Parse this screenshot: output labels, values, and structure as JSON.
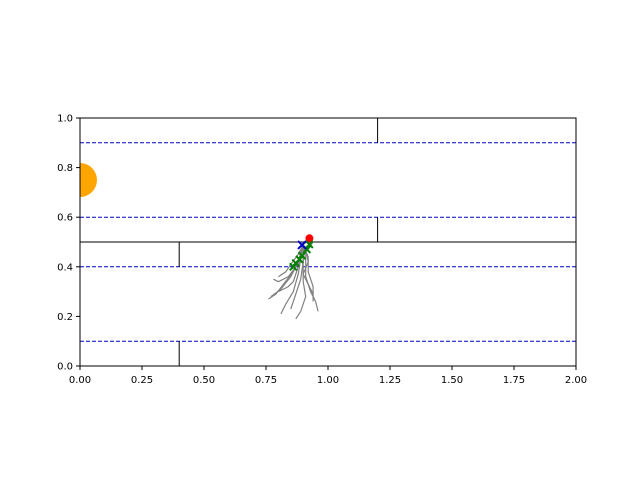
{
  "chart_data": {
    "type": "line",
    "title": "",
    "xlabel": "",
    "ylabel": "",
    "xlim": [
      0,
      2
    ],
    "ylim": [
      0,
      1
    ],
    "grid": false,
    "legend": "none",
    "x_ticks": [
      "0.00",
      "0.25",
      "0.50",
      "0.75",
      "1.00",
      "1.25",
      "1.50",
      "1.75",
      "2.00"
    ],
    "y_ticks": [
      "0.0",
      "0.2",
      "0.4",
      "0.6",
      "0.8",
      "1.0"
    ],
    "x_tick_values": [
      0,
      0.25,
      0.5,
      0.75,
      1.0,
      1.25,
      1.5,
      1.75,
      2.0
    ],
    "y_tick_values": [
      0,
      0.2,
      0.4,
      0.6,
      0.8,
      1.0
    ],
    "lane_boundaries": {
      "color": "#000000",
      "lines": [
        [
          [
            0,
            0.5
          ],
          [
            2,
            0.5
          ]
        ]
      ],
      "ticks": [
        [
          [
            1.2,
            1.0
          ],
          [
            1.2,
            0.9
          ]
        ],
        [
          [
            1.2,
            0.6
          ],
          [
            1.2,
            0.5
          ]
        ],
        [
          [
            0.4,
            0.5
          ],
          [
            0.4,
            0.4
          ]
        ],
        [
          [
            0.4,
            0.1
          ],
          [
            0.4,
            0.0
          ]
        ]
      ]
    },
    "dashed_lines": {
      "color": "#0000cc",
      "y": [
        0.9,
        0.6,
        0.4,
        0.1
      ]
    },
    "goal": {
      "x": 0.0,
      "y": 0.75,
      "color": "#ffa500"
    },
    "trajectories": {
      "color": "#808080",
      "paths": [
        [
          [
            0.9,
            0.49
          ],
          [
            0.89,
            0.44
          ],
          [
            0.86,
            0.38
          ],
          [
            0.82,
            0.33
          ],
          [
            0.79,
            0.29
          ],
          [
            0.76,
            0.27
          ]
        ],
        [
          [
            0.9,
            0.49
          ],
          [
            0.88,
            0.42
          ],
          [
            0.85,
            0.36
          ],
          [
            0.81,
            0.31
          ],
          [
            0.77,
            0.28
          ]
        ],
        [
          [
            0.9,
            0.49
          ],
          [
            0.89,
            0.43
          ],
          [
            0.88,
            0.37
          ],
          [
            0.86,
            0.3
          ],
          [
            0.83,
            0.25
          ],
          [
            0.81,
            0.21
          ]
        ],
        [
          [
            0.9,
            0.49
          ],
          [
            0.9,
            0.42
          ],
          [
            0.89,
            0.35
          ],
          [
            0.87,
            0.29
          ],
          [
            0.85,
            0.23
          ]
        ],
        [
          [
            0.9,
            0.49
          ],
          [
            0.9,
            0.41
          ],
          [
            0.9,
            0.34
          ],
          [
            0.91,
            0.28
          ],
          [
            0.89,
            0.22
          ],
          [
            0.87,
            0.19
          ]
        ],
        [
          [
            0.9,
            0.49
          ],
          [
            0.91,
            0.43
          ],
          [
            0.91,
            0.36
          ],
          [
            0.93,
            0.3
          ],
          [
            0.95,
            0.26
          ],
          [
            0.96,
            0.22
          ]
        ],
        [
          [
            0.9,
            0.49
          ],
          [
            0.92,
            0.44
          ],
          [
            0.92,
            0.38
          ],
          [
            0.94,
            0.32
          ],
          [
            0.94,
            0.26
          ]
        ],
        [
          [
            0.9,
            0.49
          ],
          [
            0.9,
            0.45
          ],
          [
            0.87,
            0.4
          ],
          [
            0.84,
            0.36
          ],
          [
            0.8,
            0.34
          ],
          [
            0.78,
            0.35
          ]
        ],
        [
          [
            0.9,
            0.49
          ],
          [
            0.88,
            0.45
          ],
          [
            0.85,
            0.41
          ],
          [
            0.83,
            0.38
          ],
          [
            0.8,
            0.36
          ]
        ],
        [
          [
            0.9,
            0.49
          ],
          [
            0.91,
            0.46
          ],
          [
            0.92,
            0.42
          ],
          [
            0.9,
            0.37
          ],
          [
            0.92,
            0.33
          ],
          [
            0.94,
            0.29
          ]
        ],
        [
          [
            0.9,
            0.49
          ],
          [
            0.89,
            0.46
          ],
          [
            0.88,
            0.4
          ],
          [
            0.86,
            0.34
          ],
          [
            0.84,
            0.32
          ],
          [
            0.8,
            0.3
          ]
        ],
        [
          [
            0.9,
            0.49
          ],
          [
            0.93,
            0.51
          ],
          [
            0.94,
            0.5
          ],
          [
            0.92,
            0.47
          ],
          [
            0.9,
            0.45
          ]
        ]
      ]
    },
    "markers": {
      "red": {
        "points": [
          [
            0.925,
            0.515
          ]
        ],
        "color": "#ff0000"
      },
      "blue_x": {
        "points": [
          [
            0.895,
            0.488
          ]
        ],
        "color": "#0000cc"
      },
      "green_x": {
        "points": [
          [
            0.925,
            0.49
          ],
          [
            0.915,
            0.47
          ],
          [
            0.895,
            0.445
          ],
          [
            0.885,
            0.43
          ],
          [
            0.87,
            0.415
          ],
          [
            0.86,
            0.4
          ]
        ],
        "color": "#008000"
      }
    }
  }
}
